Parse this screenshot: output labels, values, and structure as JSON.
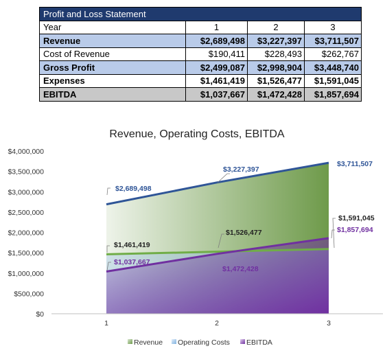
{
  "table": {
    "title": "Profit and Loss Statement",
    "header": [
      "Year",
      "1",
      "2",
      "3"
    ],
    "rows": [
      {
        "label": "Revenue",
        "values": [
          "$2,689,498",
          "$3,227,397",
          "$3,711,507"
        ]
      },
      {
        "label": "Cost of Revenue",
        "values": [
          "$190,411",
          "$228,493",
          "$262,767"
        ]
      },
      {
        "label": "Gross Profit",
        "values": [
          "$2,499,087",
          "$2,998,904",
          "$3,448,740"
        ]
      },
      {
        "label": "Expenses",
        "values": [
          "$1,461,419",
          "$1,526,477",
          "$1,591,045"
        ]
      },
      {
        "label": "EBITDA",
        "values": [
          "$1,037,667",
          "$1,472,428",
          "$1,857,694"
        ]
      }
    ]
  },
  "chart_data": {
    "type": "area",
    "title": "Revenue, Operating Costs, EBITDA",
    "categories": [
      "1",
      "2",
      "3"
    ],
    "ylim": [
      0,
      4000000
    ],
    "y_ticks": [
      "$0",
      "$500,000",
      "$1,000,000",
      "$1,500,000",
      "$2,000,000",
      "$2,500,000",
      "$3,000,000",
      "$3,500,000",
      "$4,000,000"
    ],
    "legend_position": "bottom",
    "series": [
      {
        "name": "Revenue",
        "values": [
          2689498,
          3227397,
          3711507
        ],
        "labels": [
          "$2,689,498",
          "$3,227,397",
          "$3,711,507"
        ],
        "color": "#2f5597",
        "fill": "#6e9a4a"
      },
      {
        "name": "Operating Costs",
        "values": [
          1461419,
          1526477,
          1591045
        ],
        "labels": [
          "$1,461,419",
          "$1,526,477",
          "$1,591,045"
        ],
        "color": "#70ad47",
        "fill": "#9dc3e6"
      },
      {
        "name": "EBITDA",
        "values": [
          1037667,
          1472428,
          1857694
        ],
        "labels": [
          "$1,037,667",
          "$1,472,428",
          "$1,857,694"
        ],
        "color": "#7030a0",
        "fill": "#7030a0"
      }
    ]
  }
}
